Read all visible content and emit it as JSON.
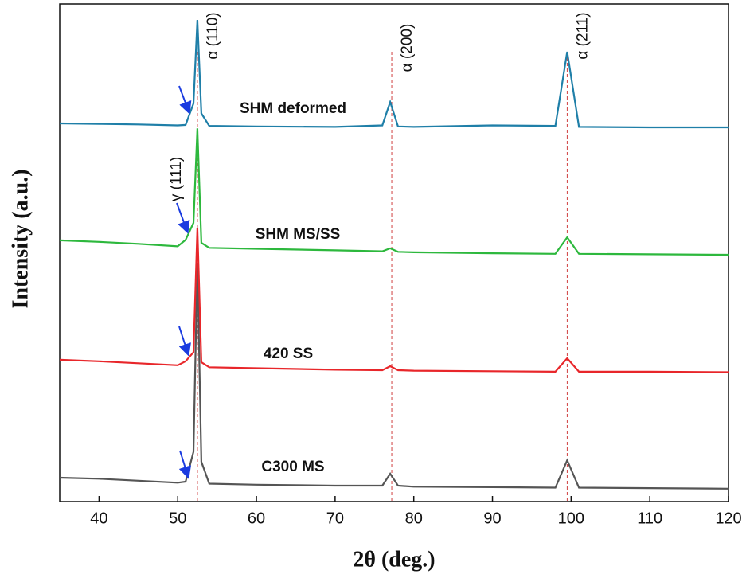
{
  "chart_data": {
    "type": "line",
    "x_label": "2θ (deg.)",
    "y_label": "Intensity (a.u.)",
    "x": [
      35,
      40,
      45,
      50,
      51,
      52,
      52.5,
      53,
      54,
      60,
      70,
      76,
      77,
      78,
      80,
      90,
      98,
      99.5,
      101,
      110,
      120
    ],
    "series": [
      {
        "name": "C300 MS",
        "color": "#555555",
        "values": [
          4.8,
          4.6,
          4.2,
          3.8,
          4.0,
          10,
          48,
          8,
          3.6,
          3.4,
          3.2,
          3.2,
          5.6,
          3.2,
          3.0,
          2.9,
          2.8,
          8.3,
          2.8,
          2.7,
          2.6
        ]
      },
      {
        "name": "420 SS",
        "color": "#e8262a",
        "values": [
          28.5,
          28.2,
          27.8,
          27.4,
          28.2,
          30,
          55,
          28,
          27,
          26.8,
          26.5,
          26.4,
          27.2,
          26.4,
          26.3,
          26.2,
          26.1,
          28.8,
          26.1,
          26.1,
          26.0
        ]
      },
      {
        "name": "SHM MS/SS",
        "color": "#2db83d",
        "values": [
          52.5,
          52.2,
          51.8,
          51.3,
          52.6,
          56,
          75,
          52,
          51,
          50.8,
          50.5,
          50.3,
          50.9,
          50.2,
          50.1,
          49.9,
          49.8,
          53.1,
          49.8,
          49.7,
          49.6
        ]
      },
      {
        "name": "SHM deformed",
        "color": "#1f7fa8",
        "values": [
          76,
          75.9,
          75.8,
          75.6,
          75.7,
          80,
          96.8,
          78,
          75.5,
          75.4,
          75.3,
          75.6,
          80.3,
          75.4,
          75.3,
          75.6,
          75.5,
          90.4,
          75.3,
          75.2,
          75.2
        ]
      }
    ],
    "annotations": [
      {
        "text": "α (110)",
        "x": 52.5
      },
      {
        "text": "α (200)",
        "x": 77.2
      },
      {
        "text": "α (211)",
        "x": 99.5
      },
      {
        "text": "γ (111)",
        "x": 50.9
      }
    ],
    "reference_lines": [
      52.5,
      77.2,
      99.5
    ],
    "xlim": [
      35,
      120
    ],
    "xticks": [
      40,
      50,
      60,
      70,
      80,
      90,
      100,
      110,
      120
    ],
    "ylim": [
      0,
      100
    ]
  }
}
